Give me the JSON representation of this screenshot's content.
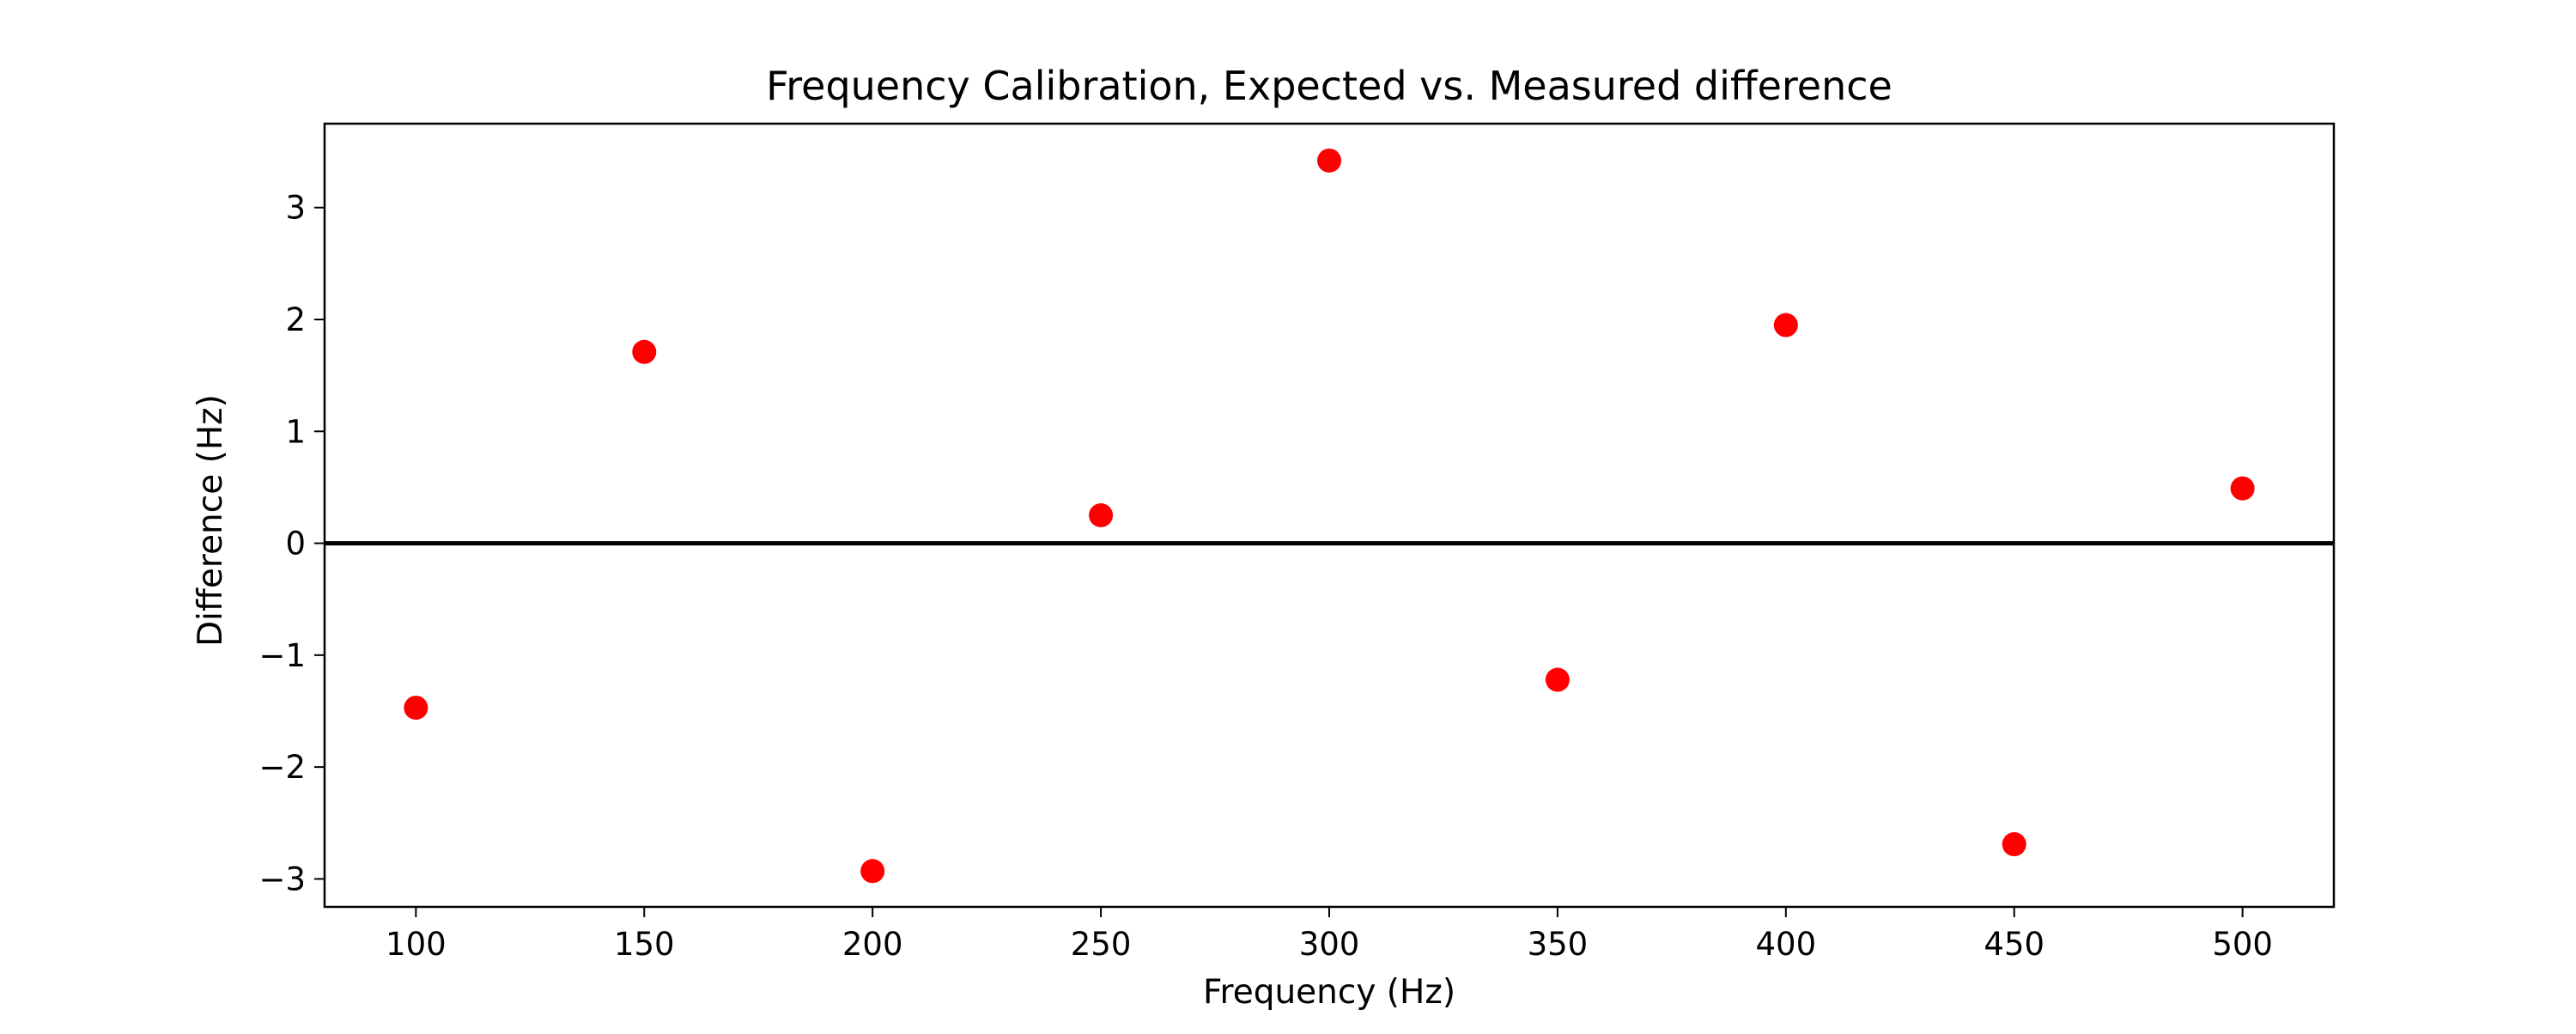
{
  "chart_data": {
    "type": "scatter",
    "title": "Frequency Calibration, Expected vs. Measured difference",
    "xlabel": "Frequency (Hz)",
    "ylabel": "Difference (Hz)",
    "xlim": [
      80,
      520
    ],
    "ylim": [
      -3.25,
      3.75
    ],
    "x_ticks": [
      100,
      150,
      200,
      250,
      300,
      350,
      400,
      450,
      500
    ],
    "y_ticks": [
      -3,
      -2,
      -1,
      0,
      1,
      2,
      3
    ],
    "x_tick_labels": [
      "100",
      "150",
      "200",
      "250",
      "300",
      "350",
      "400",
      "450",
      "500"
    ],
    "y_tick_labels": [
      "−3",
      "−2",
      "−1",
      "0",
      "1",
      "2",
      "3"
    ],
    "grid": false,
    "reference_line_y": 0,
    "series": [
      {
        "color": "#ff0000",
        "x": [
          100,
          150,
          200,
          250,
          300,
          350,
          400,
          450,
          500
        ],
        "y": [
          -1.47,
          1.71,
          -2.93,
          0.25,
          3.42,
          -1.22,
          1.95,
          -2.69,
          0.49
        ]
      }
    ]
  }
}
